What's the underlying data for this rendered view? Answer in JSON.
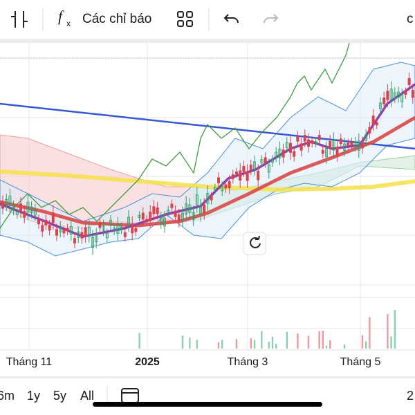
{
  "toolbar": {
    "indicators": "Các chỉ báo",
    "right_cut": "c"
  },
  "x_axis": {
    "labels": [
      "Tháng 11",
      "2025",
      "Tháng 3",
      "Tháng 5"
    ]
  },
  "ranges": {
    "items": [
      "6m",
      "1y",
      "5y",
      "All"
    ],
    "right_cut": "2"
  }
}
